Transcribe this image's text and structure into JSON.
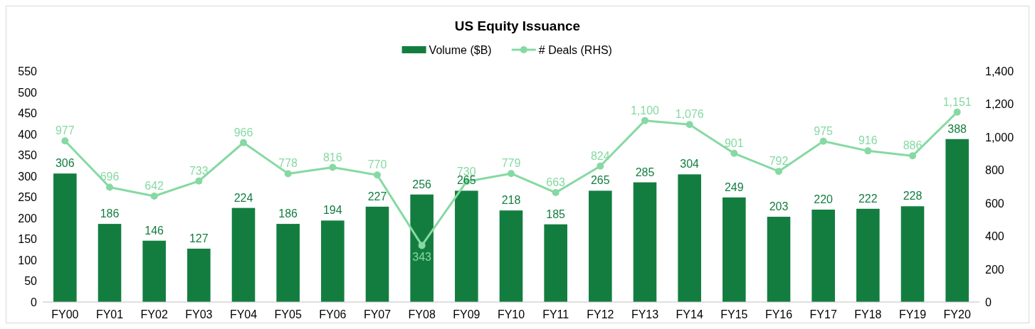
{
  "chart_data": {
    "type": "bar",
    "title": "US Equity Issuance",
    "categories": [
      "FY00",
      "FY01",
      "FY02",
      "FY03",
      "FY04",
      "FY05",
      "FY06",
      "FY07",
      "FY08",
      "FY09",
      "FY10",
      "FY11",
      "FY12",
      "FY13",
      "FY14",
      "FY15",
      "FY16",
      "FY17",
      "FY18",
      "FY19",
      "FY20"
    ],
    "series": [
      {
        "name": "Volume ($B)",
        "color": "#137d40",
        "values": [
          306,
          186,
          146,
          127,
          224,
          186,
          194,
          227,
          256,
          265,
          218,
          185,
          265,
          285,
          304,
          249,
          203,
          220,
          222,
          228,
          388
        ]
      },
      {
        "name": "# Deals (RHS)",
        "type": "line",
        "axis": "y2",
        "color": "#86d9a3",
        "values": [
          977,
          696,
          642,
          733,
          966,
          778,
          816,
          770,
          343,
          730,
          779,
          663,
          824,
          1100,
          1076,
          901,
          792,
          975,
          916,
          886,
          1151
        ],
        "value_labels": [
          "977",
          "696",
          "642",
          "733",
          "966",
          "778",
          "816",
          "770",
          "343",
          "730",
          "779",
          "663",
          "824",
          "1,100",
          "1,076",
          "901",
          "792",
          "975",
          "916",
          "886",
          "1,151"
        ]
      }
    ],
    "ylim": [
      0,
      550
    ],
    "yticks": [
      0,
      50,
      100,
      150,
      200,
      250,
      300,
      350,
      400,
      450,
      500,
      550
    ],
    "y2lim": [
      0,
      1400
    ],
    "y2ticks": [
      0,
      {
        "value": 200,
        "label": "200"
      },
      {
        "value": 400,
        "label": "400"
      },
      {
        "value": 600,
        "label": "600"
      },
      {
        "value": 800,
        "label": "800"
      },
      {
        "value": 1000,
        "label": "1,000"
      },
      {
        "value": 1200,
        "label": "1,200"
      },
      {
        "value": 1400,
        "label": "1,400"
      }
    ],
    "data_labels": true,
    "legend": "top",
    "marker": "circle",
    "grid": false
  }
}
